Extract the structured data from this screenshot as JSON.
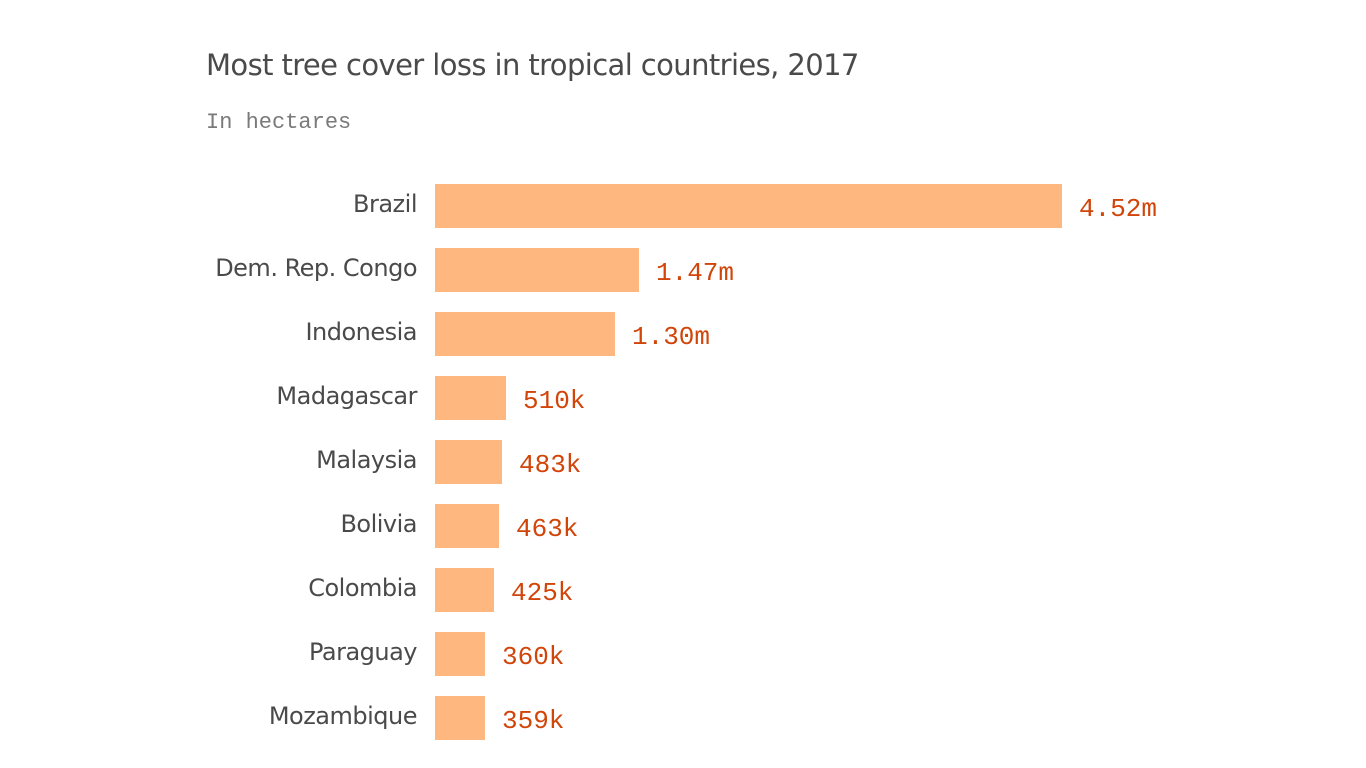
{
  "chart": {
    "title": "Most tree cover loss in tropical countries, 2017",
    "subtitle": "In hectares"
  },
  "chart_data": {
    "type": "bar",
    "orientation": "horizontal",
    "title": "Most tree cover loss in tropical countries, 2017",
    "subtitle": "In hectares",
    "xlabel": "",
    "ylabel": "",
    "categories": [
      "Brazil",
      "Dem. Rep. Congo",
      "Indonesia",
      "Madagascar",
      "Malaysia",
      "Bolivia",
      "Colombia",
      "Paraguay",
      "Mozambique"
    ],
    "values": [
      4520000,
      1470000,
      1300000,
      510000,
      483000,
      463000,
      425000,
      360000,
      359000
    ],
    "value_labels": [
      "4.52m",
      "1.47m",
      "1.30m",
      "510k",
      "483k",
      "463k",
      "425k",
      "360k",
      "359k"
    ],
    "bar_color": "#ffb780",
    "label_color": "#d1450a",
    "grid": false,
    "legend": null
  }
}
